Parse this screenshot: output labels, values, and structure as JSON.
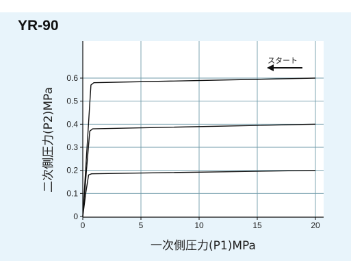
{
  "header": {
    "cropped_text": "",
    "model": "YR-90"
  },
  "colors": {
    "panel": "#e8f4fb",
    "plot_bg": "#ffffff",
    "grid": "#6f9aa8",
    "curve": "#111111"
  },
  "chart_data": {
    "type": "line",
    "title": "YR-90",
    "xlabel": "一次側圧力(P1)MPa",
    "ylabel": "二次側圧力(P2)MPa",
    "xlim": [
      0,
      20
    ],
    "ylim": [
      0,
      0.6
    ],
    "xticks": [
      0,
      5,
      10,
      15,
      20
    ],
    "yticks": [
      0,
      0.1,
      0.2,
      0.3,
      0.4,
      0.5,
      0.6
    ],
    "grid": true,
    "annotation": {
      "text": "スタート",
      "arrow_direction": "left"
    },
    "series": [
      {
        "x": [
          0,
          0.25,
          0.5,
          0.75,
          20
        ],
        "y": [
          0,
          0.1,
          0.18,
          0.185,
          0.2
        ]
      },
      {
        "x": [
          0,
          0.3,
          0.6,
          0.85,
          20
        ],
        "y": [
          0,
          0.19,
          0.37,
          0.38,
          0.4
        ]
      },
      {
        "x": [
          0,
          0.35,
          0.7,
          0.95,
          20
        ],
        "y": [
          0,
          0.29,
          0.57,
          0.58,
          0.6
        ]
      }
    ]
  }
}
